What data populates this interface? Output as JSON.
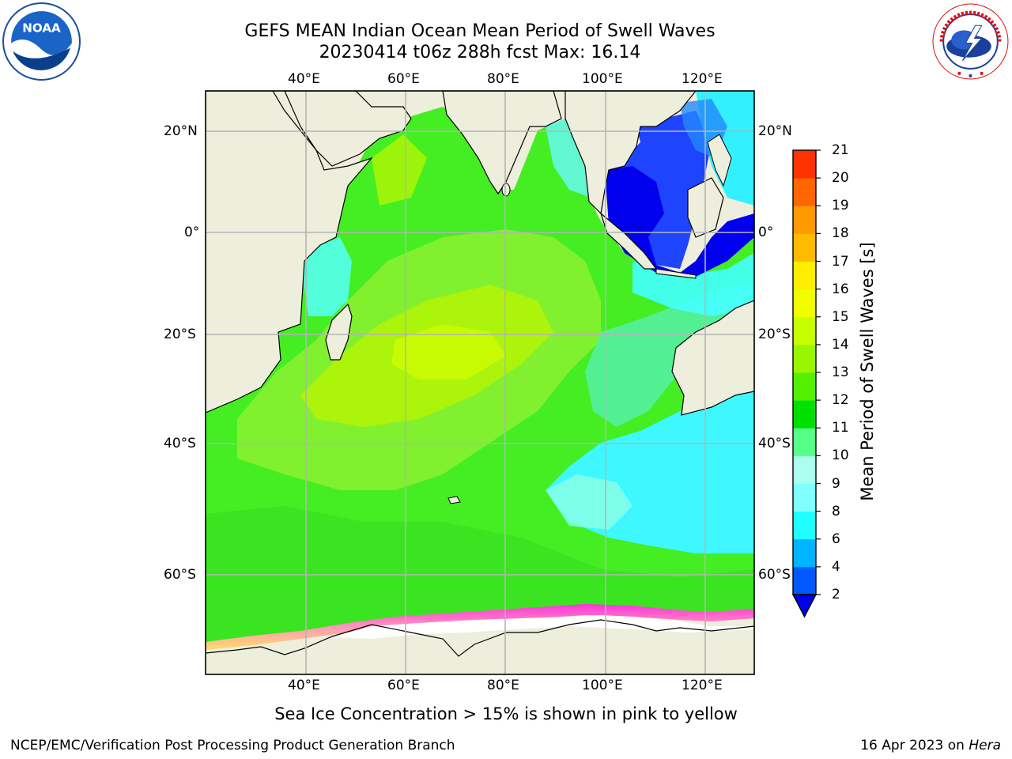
{
  "title_line1": "GEFS MEAN Indian Ocean Mean Period of Swell Waves",
  "title_line2": "20230414 t06z 288h fcst   Max: 16.14",
  "lon_labels": [
    "40°E",
    "60°E",
    "80°E",
    "100°E",
    "120°E"
  ],
  "lat_labels_left": [
    "20°N",
    "0°",
    "20°S",
    "40°S",
    "60°S"
  ],
  "lat_labels_right": [
    "20°N",
    "0°",
    "20°S",
    "40°S",
    "60°S"
  ],
  "colorbar": {
    "title": "Mean Period of Swell Waves [s]",
    "ticks": [
      "2",
      "4",
      "6",
      "8",
      "9",
      "10",
      "11",
      "12",
      "13",
      "14",
      "15",
      "16",
      "17",
      "18",
      "19",
      "20",
      "21"
    ],
    "colors": [
      "#0058ff",
      "#00b4ff",
      "#1fffff",
      "#7fffff",
      "#aaffee",
      "#55ff88",
      "#00e000",
      "#55f000",
      "#99f500",
      "#c8ff00",
      "#f0ff00",
      "#ffee00",
      "#ffbb00",
      "#ff9900",
      "#ff6600",
      "#ff3300",
      "#ff0000"
    ],
    "under_color": "#0000f0"
  },
  "caption": "Sea Ice Concentration > 15% is shown in pink to yellow",
  "footer_left": "NCEP/EMC/Verification Post Processing Product Generation Branch",
  "footer_right_prefix": "16 Apr 2023 on ",
  "footer_right_host": "Hera",
  "logos": {
    "left": "noaa-logo",
    "right": "national-weather-service-logo"
  },
  "nws_logo_text": "NATIONAL WEATHER SERVICE",
  "noaa_logo_text": "NOAA"
}
